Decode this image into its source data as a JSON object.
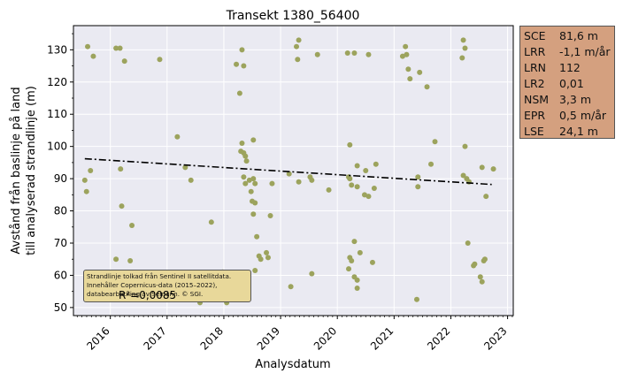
{
  "chart_data": {
    "type": "scatter",
    "title": "Transekt 1380_56400",
    "xlabel": "Analysdatum",
    "ylabel_lines": [
      "Avstånd från baslinje på land",
      "till analyserad strandlinje (m)"
    ],
    "xlim": [
      2015.35,
      2023.1
    ],
    "ylim": [
      47.5,
      137.5
    ],
    "x_ticks": [
      2016,
      2017,
      2018,
      2019,
      2020,
      2021,
      2022,
      2023
    ],
    "x_tick_labels": [
      "2016",
      "2017",
      "2018",
      "2019",
      "2020",
      "2021",
      "2022",
      "2023"
    ],
    "y_ticks": [
      50,
      60,
      70,
      80,
      90,
      100,
      110,
      120,
      130
    ],
    "y_tick_labels": [
      "50",
      "60",
      "70",
      "80",
      "90",
      "100",
      "110",
      "120",
      "130"
    ],
    "grid": true,
    "points": [
      [
        2015.6,
        131
      ],
      [
        2015.7,
        128
      ],
      [
        2015.55,
        89.5
      ],
      [
        2015.58,
        86
      ],
      [
        2015.65,
        92.5
      ],
      [
        2016.1,
        65
      ],
      [
        2016.1,
        130.5
      ],
      [
        2016.17,
        130.5
      ],
      [
        2016.25,
        126.5
      ],
      [
        2016.18,
        93
      ],
      [
        2016.2,
        81.5
      ],
      [
        2016.38,
        75.5
      ],
      [
        2016.35,
        64.5
      ],
      [
        2016.87,
        127
      ],
      [
        2017.18,
        103
      ],
      [
        2017.32,
        93.5
      ],
      [
        2017.42,
        89.5
      ],
      [
        2017.5,
        55
      ],
      [
        2017.58,
        51.5
      ],
      [
        2017.78,
        76.5
      ],
      [
        2017.98,
        61
      ],
      [
        2018.05,
        51.5
      ],
      [
        2018.22,
        125.5
      ],
      [
        2018.28,
        116.5
      ],
      [
        2018.35,
        125
      ],
      [
        2018.32,
        130
      ],
      [
        2018.32,
        101
      ],
      [
        2018.3,
        98.5
      ],
      [
        2018.35,
        98
      ],
      [
        2018.38,
        97
      ],
      [
        2018.4,
        95.5
      ],
      [
        2018.35,
        90.5
      ],
      [
        2018.38,
        88.5
      ],
      [
        2018.45,
        89.5
      ],
      [
        2018.52,
        90
      ],
      [
        2018.55,
        88.5
      ],
      [
        2018.48,
        86
      ],
      [
        2018.5,
        83
      ],
      [
        2018.55,
        82.5
      ],
      [
        2018.52,
        79
      ],
      [
        2018.58,
        72
      ],
      [
        2018.55,
        61.5
      ],
      [
        2018.62,
        66
      ],
      [
        2018.65,
        65
      ],
      [
        2018.75,
        67
      ],
      [
        2018.78,
        65.5
      ],
      [
        2018.85,
        88.5
      ],
      [
        2018.82,
        78.5
      ],
      [
        2018.52,
        102
      ],
      [
        2019.15,
        91.5
      ],
      [
        2019.18,
        56.5
      ],
      [
        2019.28,
        131
      ],
      [
        2019.3,
        127
      ],
      [
        2019.32,
        89
      ],
      [
        2019.32,
        133
      ],
      [
        2019.52,
        90.5
      ],
      [
        2019.55,
        89.5
      ],
      [
        2019.55,
        60.5
      ],
      [
        2019.65,
        128.5
      ],
      [
        2019.85,
        86.5
      ],
      [
        2020.18,
        129
      ],
      [
        2020.2,
        90.5
      ],
      [
        2020.22,
        90
      ],
      [
        2020.22,
        65.5
      ],
      [
        2020.25,
        64.5
      ],
      [
        2020.2,
        62
      ],
      [
        2020.22,
        100.5
      ],
      [
        2020.25,
        88
      ],
      [
        2020.35,
        87.5
      ],
      [
        2020.3,
        129
      ],
      [
        2020.3,
        70.5
      ],
      [
        2020.35,
        94
      ],
      [
        2020.3,
        59.5
      ],
      [
        2020.35,
        58.5
      ],
      [
        2020.35,
        56
      ],
      [
        2020.4,
        67
      ],
      [
        2020.48,
        85
      ],
      [
        2020.55,
        84.5
      ],
      [
        2020.5,
        92.5
      ],
      [
        2020.55,
        128.5
      ],
      [
        2020.62,
        64
      ],
      [
        2020.65,
        87
      ],
      [
        2020.68,
        94.5
      ],
      [
        2021.15,
        128
      ],
      [
        2021.2,
        131
      ],
      [
        2021.22,
        128.5
      ],
      [
        2021.25,
        124
      ],
      [
        2021.28,
        121
      ],
      [
        2021.4,
        52.5
      ],
      [
        2021.42,
        90.5
      ],
      [
        2021.42,
        87.5
      ],
      [
        2021.45,
        123
      ],
      [
        2021.58,
        118.5
      ],
      [
        2021.65,
        94.5
      ],
      [
        2021.72,
        101.5
      ],
      [
        2022.2,
        127.5
      ],
      [
        2022.22,
        133
      ],
      [
        2022.25,
        130.5
      ],
      [
        2022.22,
        91
      ],
      [
        2022.25,
        100
      ],
      [
        2022.28,
        90
      ],
      [
        2022.3,
        70
      ],
      [
        2022.32,
        89
      ],
      [
        2022.4,
        63
      ],
      [
        2022.42,
        63.5
      ],
      [
        2022.52,
        59.5
      ],
      [
        2022.55,
        93.5
      ],
      [
        2022.55,
        58
      ],
      [
        2022.58,
        64.5
      ],
      [
        2022.6,
        65
      ],
      [
        2022.62,
        84.5
      ],
      [
        2022.75,
        93
      ]
    ],
    "regression": {
      "x": [
        2015.55,
        2022.72
      ],
      "y": [
        96.2,
        88.2
      ],
      "r2_label": "R²=0,0085"
    },
    "marker_color": "#9ca35d",
    "line_color": "#000000"
  },
  "stats": [
    {
      "key": "SCE",
      "value": "81,6 m"
    },
    {
      "key": "LRR",
      "value": "-1,1 m/år"
    },
    {
      "key": "LRN",
      "value": "112"
    },
    {
      "key": "LR2",
      "value": "0,01"
    },
    {
      "key": "NSM",
      "value": "3,3 m"
    },
    {
      "key": "EPR",
      "value": "0,5 m/år"
    },
    {
      "key": "LSE",
      "value": "24,1 m"
    }
  ],
  "note": {
    "line1": "Strandlinje tolkad från Sentinel II satellitdata.",
    "line2": "Innehåller Copernicus-data (2015–2022),",
    "line3": "databearbetning av Semann. © SGI."
  }
}
